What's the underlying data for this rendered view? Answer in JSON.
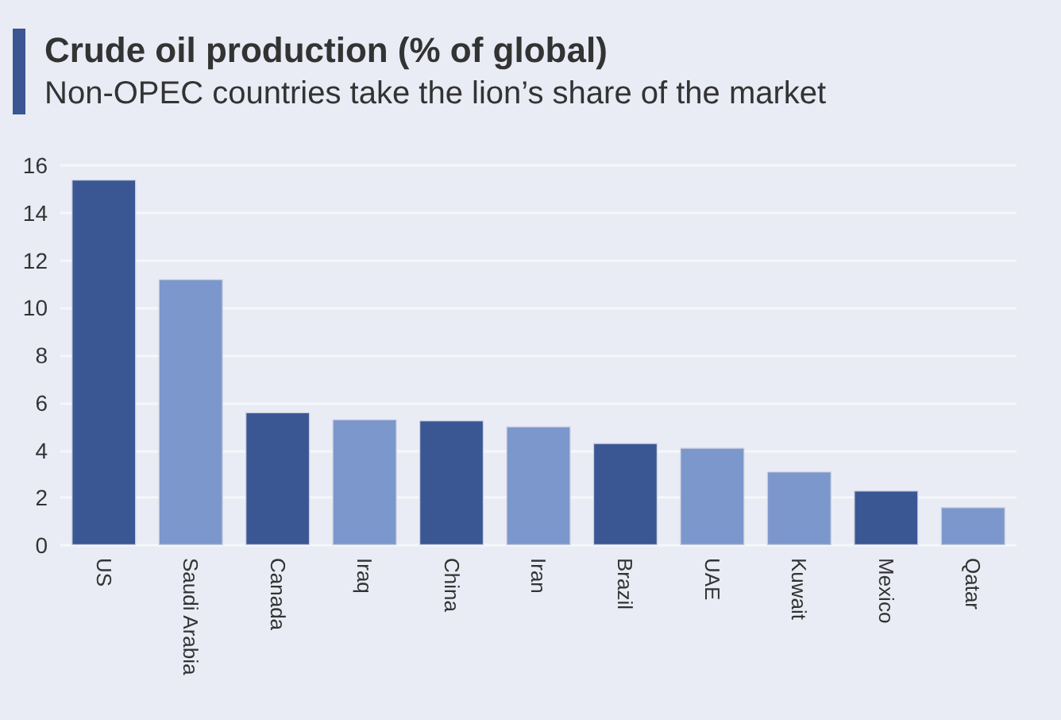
{
  "chart_data": {
    "type": "bar",
    "title": "Crude oil production (% of global)",
    "subtitle": "Non-OPEC countries take the lion’s share of the market",
    "categories": [
      "US",
      "Saudi Arabia",
      "Canada",
      "Iraq",
      "China",
      "Iran",
      "Brazil",
      "UAE",
      "Kuwait",
      "Mexico",
      "Qatar"
    ],
    "values": [
      15.4,
      11.2,
      5.6,
      5.3,
      5.25,
      5.0,
      4.3,
      4.1,
      3.1,
      2.3,
      1.6
    ],
    "colors": [
      "#3a5794",
      "#7b97cc",
      "#3a5794",
      "#7b97cc",
      "#3a5794",
      "#7b97cc",
      "#3a5794",
      "#7b97cc",
      "#7b97cc",
      "#3a5794",
      "#7b97cc"
    ],
    "ylim": [
      0,
      16
    ],
    "yticks": [
      0,
      2,
      4,
      6,
      8,
      10,
      12,
      14,
      16
    ],
    "grid": "y"
  }
}
